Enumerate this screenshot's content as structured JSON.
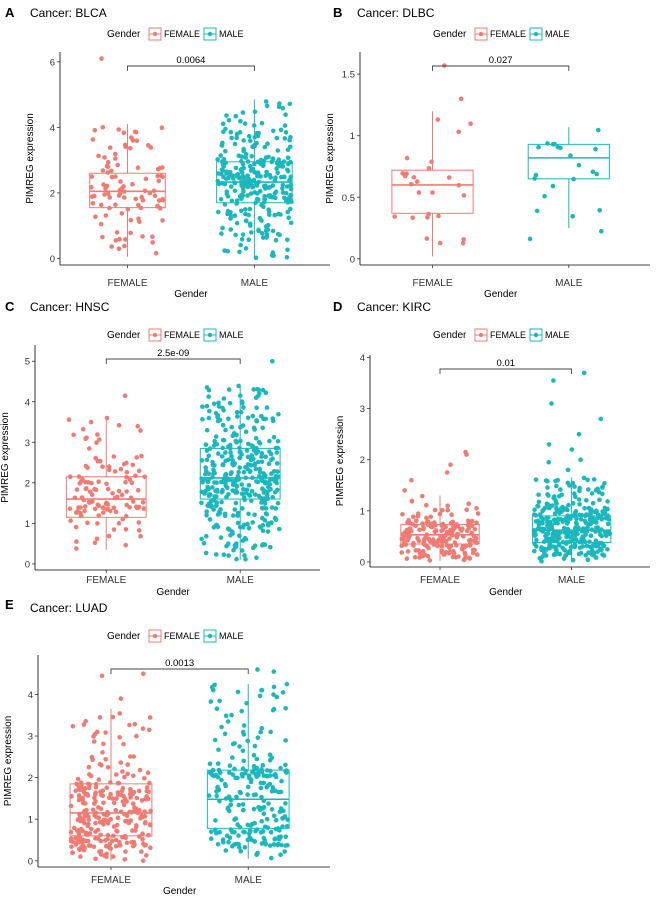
{
  "colors": {
    "female": "#f07b72",
    "male": "#1ab8bd",
    "axis": "#000000",
    "bracket": "#444444"
  },
  "legend": {
    "title": "Gender",
    "items": [
      "FEMALE",
      "MALE"
    ]
  },
  "chart_data": [
    {
      "panel": "A",
      "title": "Cancer: BLCA",
      "type": "box+jitter",
      "categories": [
        "FEMALE",
        "MALE"
      ],
      "xlabel": "Gender",
      "ylabel": "PIMREG expression",
      "ylim": [
        -0.2,
        6.3
      ],
      "yticks": [
        0,
        2,
        4,
        6
      ],
      "pvalue": "0.0064",
      "series": [
        {
          "name": "FEMALE",
          "q1": 1.55,
          "median": 2.05,
          "q3": 2.6,
          "wlo": 0.05,
          "whi": 4.1,
          "n": 100,
          "min": 0.05,
          "max": 4.1,
          "outliers": [
            6.1
          ]
        },
        {
          "name": "MALE",
          "q1": 1.7,
          "median": 2.33,
          "q3": 2.95,
          "wlo": 0.0,
          "whi": 4.85,
          "n": 300,
          "min": 0.0,
          "max": 4.85,
          "outliers": []
        }
      ]
    },
    {
      "panel": "B",
      "title": "Cancer: DLBC",
      "type": "box+jitter",
      "categories": [
        "FEMALE",
        "MALE"
      ],
      "xlabel": "Gender",
      "ylabel": "PIMREG expression",
      "ylim": [
        -0.05,
        1.68
      ],
      "yticks": [
        0.0,
        0.5,
        1.0,
        1.5
      ],
      "pvalue": "0.027",
      "series": [
        {
          "name": "FEMALE",
          "q1": 0.37,
          "median": 0.6,
          "q3": 0.72,
          "wlo": 0.02,
          "whi": 1.2,
          "n": 26,
          "min": 0.02,
          "max": 1.2,
          "outliers": [
            1.3,
            1.57
          ]
        },
        {
          "name": "MALE",
          "q1": 0.65,
          "median": 0.82,
          "q3": 0.93,
          "wlo": 0.25,
          "whi": 1.07,
          "n": 22,
          "min": 0.1,
          "max": 1.08,
          "outliers": []
        }
      ]
    },
    {
      "panel": "C",
      "title": "Cancer: HNSC",
      "type": "box+jitter",
      "categories": [
        "FEMALE",
        "MALE"
      ],
      "xlabel": "Gender",
      "ylabel": "PIMREG expression",
      "ylim": [
        -0.15,
        5.4
      ],
      "yticks": [
        0,
        1,
        2,
        3,
        4,
        5
      ],
      "pvalue": "2.5e-09",
      "series": [
        {
          "name": "FEMALE",
          "q1": 1.15,
          "median": 1.6,
          "q3": 2.15,
          "wlo": 0.35,
          "whi": 3.6,
          "n": 120,
          "min": 0.35,
          "max": 3.6,
          "outliers": [
            4.15
          ]
        },
        {
          "name": "MALE",
          "q1": 1.6,
          "median": 2.12,
          "q3": 2.85,
          "wlo": 0.1,
          "whi": 4.4,
          "n": 380,
          "min": 0.1,
          "max": 4.4,
          "outliers": [
            5.0
          ]
        }
      ]
    },
    {
      "panel": "D",
      "title": "Cancer: KIRC",
      "type": "box+jitter",
      "categories": [
        "FEMALE",
        "MALE"
      ],
      "xlabel": "Gender",
      "ylabel": "PIMREG expression",
      "ylim": [
        -0.1,
        4.05
      ],
      "yticks": [
        0,
        1,
        2,
        3,
        4
      ],
      "pvalue": "0.01",
      "series": [
        {
          "name": "FEMALE",
          "q1": 0.35,
          "median": 0.53,
          "q3": 0.73,
          "wlo": 0.02,
          "whi": 1.3,
          "n": 180,
          "min": 0.02,
          "max": 1.3,
          "outliers": [
            1.4,
            1.6,
            1.75,
            1.9,
            2.1,
            2.15
          ]
        },
        {
          "name": "MALE",
          "q1": 0.38,
          "median": 0.62,
          "q3": 0.9,
          "wlo": 0.0,
          "whi": 1.65,
          "n": 340,
          "min": 0.0,
          "max": 1.65,
          "outliers": [
            1.8,
            1.95,
            2.0,
            2.2,
            2.3,
            2.5,
            2.8,
            3.1,
            3.55,
            3.7
          ]
        }
      ]
    },
    {
      "panel": "E",
      "title": "Cancer: LUAD",
      "type": "box+jitter",
      "categories": [
        "FEMALE",
        "MALE"
      ],
      "xlabel": "Gender",
      "ylabel": "PIMREG expression",
      "ylim": [
        -0.15,
        4.95
      ],
      "yticks": [
        0,
        1,
        2,
        3,
        4
      ],
      "pvalue": "0.0013",
      "series": [
        {
          "name": "FEMALE",
          "q1": 0.6,
          "median": 1.15,
          "q3": 1.85,
          "wlo": 0.0,
          "whi": 3.65,
          "n": 280,
          "min": 0.0,
          "max": 3.65,
          "outliers": [
            3.9,
            4.45,
            4.5
          ]
        },
        {
          "name": "MALE",
          "q1": 0.78,
          "median": 1.48,
          "q3": 2.18,
          "wlo": 0.05,
          "whi": 4.25,
          "n": 240,
          "min": 0.05,
          "max": 4.25,
          "outliers": [
            4.55,
            4.6
          ]
        }
      ]
    }
  ]
}
